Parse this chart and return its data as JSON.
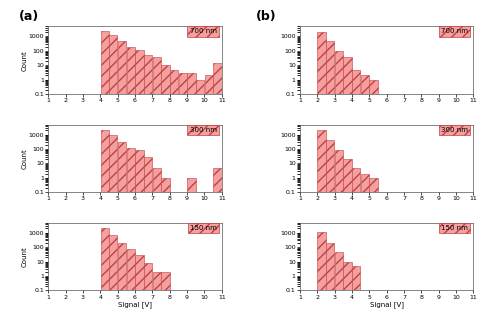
{
  "panel_a_labels": [
    "700 nm",
    "300 nm",
    "150 nm"
  ],
  "panel_b_labels": [
    "700 nm",
    "300 nm",
    "150 nm"
  ],
  "panel_a_data": [
    [
      0,
      0,
      0,
      0,
      0,
      0,
      2500,
      1200,
      500,
      200,
      120,
      50,
      40,
      10,
      5,
      3,
      3,
      1,
      2,
      15
    ],
    [
      0,
      0,
      0,
      0,
      0,
      0,
      2200,
      900,
      300,
      120,
      80,
      30,
      5,
      1,
      0,
      0,
      1,
      0,
      0,
      5
    ],
    [
      0,
      0,
      0,
      0,
      0,
      0,
      2000,
      700,
      200,
      80,
      30,
      8,
      2,
      2,
      0,
      0,
      0,
      0,
      0,
      0
    ]
  ],
  "panel_b_data": [
    [
      0,
      0,
      2200,
      500,
      100,
      40,
      5,
      2,
      1,
      0,
      0,
      0,
      0,
      0,
      0,
      0,
      0,
      0,
      0,
      0
    ],
    [
      0,
      0,
      2000,
      400,
      80,
      20,
      5,
      2,
      1,
      0,
      0,
      0,
      0,
      0,
      0,
      0,
      0,
      0,
      0,
      0
    ],
    [
      0,
      0,
      1100,
      200,
      50,
      10,
      5,
      0,
      0,
      0,
      0,
      0,
      0,
      0,
      0,
      0,
      0,
      0,
      0,
      0
    ]
  ],
  "x_edges": [
    1,
    1.5,
    2,
    2.5,
    3,
    3.5,
    4,
    4.5,
    5,
    5.5,
    6,
    6.5,
    7,
    7.5,
    8,
    8.5,
    9,
    9.5,
    10,
    10.5,
    11
  ],
  "bar_facecolor": "#f5a0a0",
  "hatch_color": "#c04040",
  "xlim": [
    1,
    11
  ],
  "ylim": [
    0.1,
    5000
  ],
  "yticks": [
    0.1,
    1,
    10,
    100,
    1000
  ],
  "xticks": [
    1,
    2,
    3,
    4,
    5,
    6,
    7,
    8,
    9,
    10,
    11
  ],
  "xlabel": "Signal [V]",
  "ylabel": "Count",
  "label_a": "(a)",
  "label_b": "(b)",
  "fig_bg": "#ffffff"
}
